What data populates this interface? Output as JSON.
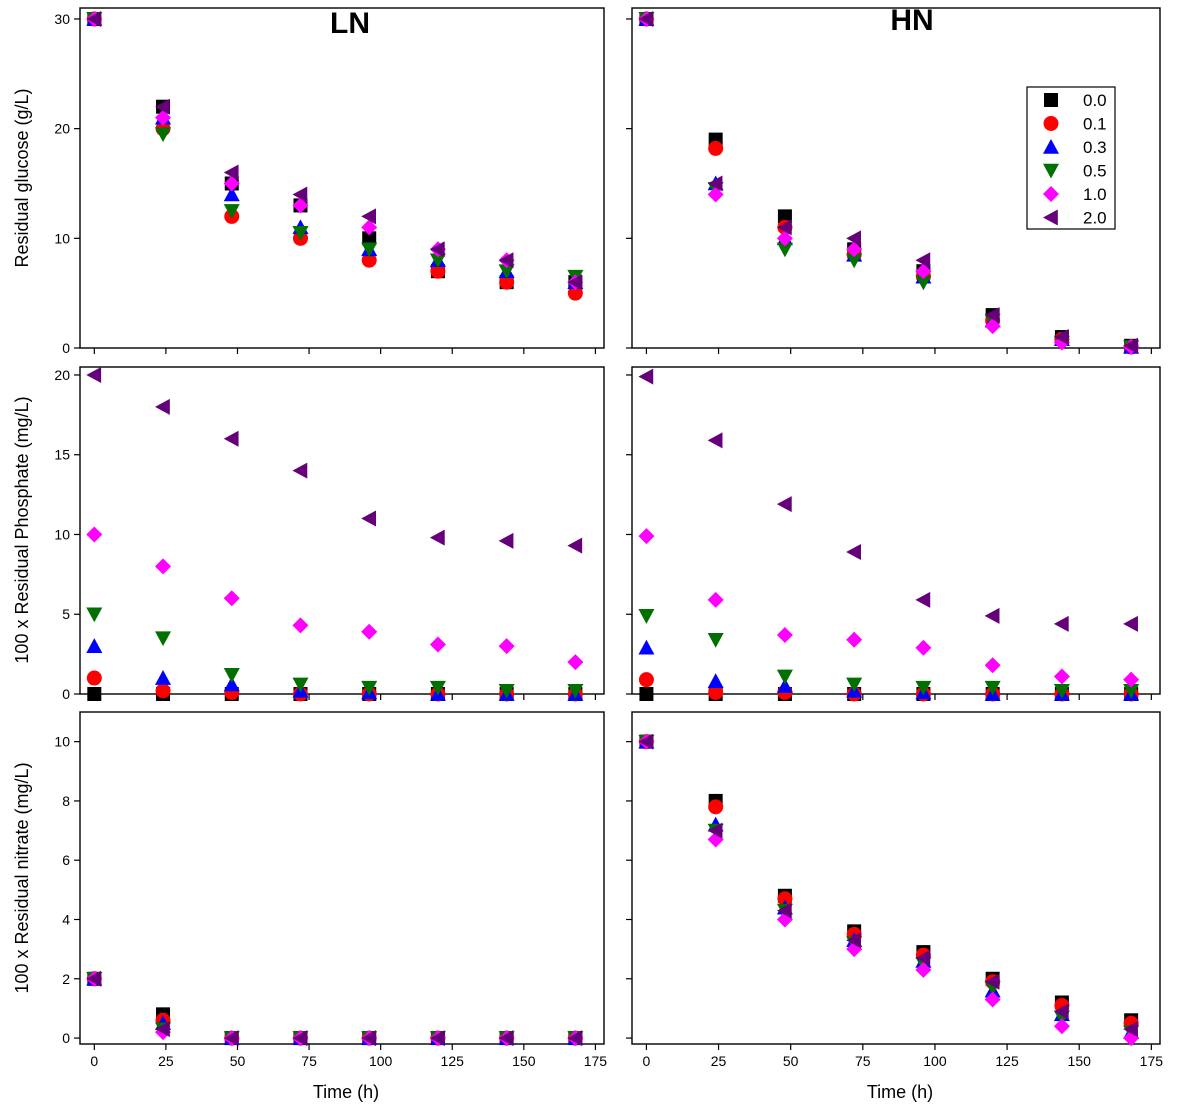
{
  "figure": {
    "column_titles": [
      "LN",
      "HN"
    ]
  },
  "legend": {
    "entries": [
      {
        "label": "0.0",
        "marker": "square",
        "color": "#000000"
      },
      {
        "label": "0.1",
        "marker": "circle",
        "color": "#ff0000"
      },
      {
        "label": "0.3",
        "marker": "triangle-up",
        "color": "#0000ff"
      },
      {
        "label": "0.5",
        "marker": "triangle-down",
        "color": "#007000"
      },
      {
        "label": "1.0",
        "marker": "diamond",
        "color": "#ff00ff"
      },
      {
        "label": "2.0",
        "marker": "triangle-left",
        "color": "#66007a"
      }
    ],
    "placement": "top-right of HN glucose panel"
  },
  "chart_data": [
    {
      "type": "scatter",
      "title": "LN",
      "xlabel": "",
      "ylabel": "Residual glucose (g/L)",
      "xlim": [
        -5,
        178
      ],
      "ylim": [
        0,
        31
      ],
      "xticks": [
        "0",
        "25",
        "50",
        "75",
        "100",
        "125",
        "150",
        "175"
      ],
      "yticks": [
        "0",
        "10",
        "20",
        "30"
      ],
      "x": [
        0,
        24,
        48,
        72,
        96,
        120,
        144,
        168
      ],
      "series": [
        {
          "name": "0.0",
          "values": [
            30,
            22,
            15,
            13,
            10,
            7,
            6,
            6
          ]
        },
        {
          "name": "0.1",
          "values": [
            30,
            20,
            12,
            10,
            8,
            7,
            6,
            5
          ]
        },
        {
          "name": "0.3",
          "values": [
            30,
            21,
            14,
            11,
            9,
            8,
            7,
            6
          ]
        },
        {
          "name": "0.5",
          "values": [
            30,
            19.5,
            12.5,
            10.5,
            9,
            8,
            7,
            6.5
          ]
        },
        {
          "name": "1.0",
          "values": [
            30,
            21,
            15,
            13,
            11,
            9,
            8,
            6
          ]
        },
        {
          "name": "2.0",
          "values": [
            30,
            22,
            16,
            14,
            12,
            9,
            8,
            6
          ]
        }
      ]
    },
    {
      "type": "scatter",
      "title": "HN",
      "xlabel": "",
      "ylabel": "",
      "xlim": [
        -5,
        178
      ],
      "ylim": [
        0,
        31
      ],
      "xticks": [
        "0",
        "25",
        "50",
        "75",
        "100",
        "125",
        "150",
        "175"
      ],
      "yticks": [],
      "x": [
        0,
        24,
        48,
        72,
        96,
        120,
        144,
        168
      ],
      "series": [
        {
          "name": "0.0",
          "values": [
            30,
            19,
            12,
            9,
            7,
            3,
            1,
            0.2
          ]
        },
        {
          "name": "0.1",
          "values": [
            30,
            18.2,
            11,
            8.5,
            6.5,
            2.5,
            0.8,
            0.1
          ]
        },
        {
          "name": "0.3",
          "values": [
            30,
            15,
            10,
            8.5,
            6.5,
            2.5,
            0.8,
            0.1
          ]
        },
        {
          "name": "0.5",
          "values": [
            30,
            14.5,
            9,
            8,
            6,
            2.5,
            0.5,
            0.1
          ]
        },
        {
          "name": "1.0",
          "values": [
            30,
            14,
            10,
            9,
            7,
            2,
            0.5,
            0.1
          ]
        },
        {
          "name": "2.0",
          "values": [
            30,
            15,
            11,
            10,
            8,
            3,
            1,
            0.2
          ]
        }
      ]
    },
    {
      "type": "scatter",
      "title": "",
      "xlabel": "",
      "ylabel": "100 x Residual Phosphate (mg/L)",
      "xlim": [
        -5,
        178
      ],
      "ylim": [
        0,
        20.5
      ],
      "xticks": [
        "0",
        "25",
        "50",
        "75",
        "100",
        "125",
        "150",
        "175"
      ],
      "yticks": [
        "0",
        "5",
        "10",
        "15",
        "20"
      ],
      "x": [
        0,
        24,
        48,
        72,
        96,
        120,
        144,
        168
      ],
      "series": [
        {
          "name": "0.0",
          "values": [
            0,
            0,
            0,
            0,
            0,
            0,
            0,
            0
          ]
        },
        {
          "name": "0.1",
          "values": [
            1,
            0.2,
            0.1,
            0,
            0,
            0,
            0,
            0
          ]
        },
        {
          "name": "0.3",
          "values": [
            3,
            1,
            0.6,
            0.2,
            0.1,
            0,
            0,
            0
          ]
        },
        {
          "name": "0.5",
          "values": [
            5,
            3.5,
            1.2,
            0.6,
            0.4,
            0.4,
            0.2,
            0.2
          ]
        },
        {
          "name": "1.0",
          "values": [
            10,
            8,
            6,
            4.3,
            3.9,
            3.1,
            3,
            2
          ]
        },
        {
          "name": "2.0",
          "values": [
            20,
            18,
            16,
            14,
            11,
            9.8,
            9.6,
            9.3
          ]
        }
      ]
    },
    {
      "type": "scatter",
      "title": "",
      "xlabel": "",
      "ylabel": "",
      "xlim": [
        -5,
        178
      ],
      "ylim": [
        0,
        20.5
      ],
      "xticks": [
        "0",
        "25",
        "50",
        "75",
        "100",
        "125",
        "150",
        "175"
      ],
      "yticks": [],
      "x": [
        0,
        24,
        48,
        72,
        96,
        120,
        144,
        168
      ],
      "series": [
        {
          "name": "0.0",
          "values": [
            0,
            0,
            0,
            0,
            0,
            0,
            0,
            0
          ]
        },
        {
          "name": "0.1",
          "values": [
            0.9,
            0.1,
            0.1,
            0,
            0,
            0,
            0,
            0
          ]
        },
        {
          "name": "0.3",
          "values": [
            2.9,
            0.8,
            0.5,
            0.2,
            0.1,
            0,
            0,
            0
          ]
        },
        {
          "name": "0.5",
          "values": [
            4.9,
            3.4,
            1.1,
            0.6,
            0.4,
            0.4,
            0.2,
            0.2
          ]
        },
        {
          "name": "1.0",
          "values": [
            9.9,
            5.9,
            3.7,
            3.4,
            2.9,
            1.8,
            1.1,
            0.9
          ]
        },
        {
          "name": "2.0",
          "values": [
            19.9,
            15.9,
            11.9,
            8.9,
            5.9,
            4.9,
            4.4,
            4.4
          ]
        }
      ]
    },
    {
      "type": "scatter",
      "title": "",
      "xlabel": "Time (h)",
      "ylabel": "100 x Residual nitrate (mg/L)",
      "xlim": [
        -5,
        178
      ],
      "ylim": [
        -0.2,
        11
      ],
      "xticks": [
        "0",
        "25",
        "50",
        "75",
        "100",
        "125",
        "150",
        "175"
      ],
      "yticks": [
        "0",
        "2",
        "4",
        "6",
        "8",
        "10"
      ],
      "x": [
        0,
        24,
        48,
        72,
        96,
        120,
        144,
        168
      ],
      "series": [
        {
          "name": "0.0",
          "values": [
            2,
            0.8,
            0,
            0,
            0,
            0,
            0,
            0
          ]
        },
        {
          "name": "0.1",
          "values": [
            2,
            0.6,
            0,
            0,
            0,
            0,
            0,
            0
          ]
        },
        {
          "name": "0.3",
          "values": [
            2,
            0.5,
            0,
            0,
            0,
            0,
            0,
            0
          ]
        },
        {
          "name": "0.5",
          "values": [
            2,
            0.3,
            0,
            0,
            0,
            0,
            0,
            0
          ]
        },
        {
          "name": "1.0",
          "values": [
            2,
            0.2,
            0,
            0,
            0,
            0,
            0,
            0
          ]
        },
        {
          "name": "2.0",
          "values": [
            2,
            0.3,
            0,
            0,
            0,
            0,
            0,
            0
          ]
        }
      ]
    },
    {
      "type": "scatter",
      "title": "",
      "xlabel": "Time (h)",
      "ylabel": "",
      "xlim": [
        -5,
        178
      ],
      "ylim": [
        -0.2,
        11
      ],
      "xticks": [
        "0",
        "25",
        "50",
        "75",
        "100",
        "125",
        "150",
        "175"
      ],
      "yticks": [],
      "x": [
        0,
        24,
        48,
        72,
        96,
        120,
        144,
        168
      ],
      "series": [
        {
          "name": "0.0",
          "values": [
            10,
            8,
            4.8,
            3.6,
            2.9,
            2,
            1.2,
            0.6
          ]
        },
        {
          "name": "0.1",
          "values": [
            10,
            7.8,
            4.7,
            3.5,
            2.8,
            1.9,
            1.1,
            0.5
          ]
        },
        {
          "name": "0.3",
          "values": [
            10,
            7.2,
            4.4,
            3.3,
            2.6,
            1.6,
            0.8,
            0.2
          ]
        },
        {
          "name": "0.5",
          "values": [
            10,
            7,
            4.3,
            3.2,
            2.5,
            1.7,
            0.7,
            0.2
          ]
        },
        {
          "name": "1.0",
          "values": [
            10,
            6.7,
            4,
            3,
            2.3,
            1.3,
            0.4,
            0
          ]
        },
        {
          "name": "2.0",
          "values": [
            10,
            7,
            4.3,
            3.3,
            2.7,
            1.9,
            0.9,
            0.3
          ]
        }
      ]
    }
  ]
}
